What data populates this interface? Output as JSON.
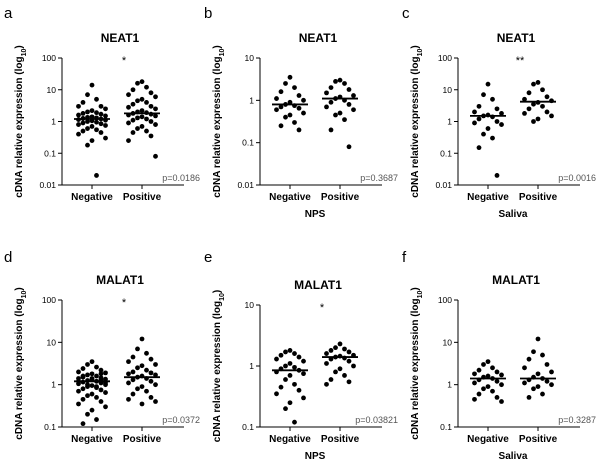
{
  "chart_data": [
    {
      "panel": "a",
      "type": "scatter",
      "title": "NEAT1",
      "ylabel": "cDNA relative expression (log10)",
      "yscale": "log",
      "ylim": [
        0.01,
        100
      ],
      "yticks": [
        0.01,
        0.1,
        1,
        10,
        100
      ],
      "yticklabels": [
        "0.01",
        "0.1",
        "1",
        "10",
        "100"
      ],
      "categories": [
        "Negative",
        "Positive"
      ],
      "xlabel": "",
      "medians": [
        1.2,
        1.8
      ],
      "pvalue": "p=0.0186",
      "significance": "*",
      "series": [
        {
          "name": "Negative",
          "values": [
            14,
            7,
            5,
            4,
            3,
            3,
            2.5,
            2.2,
            2,
            1.9,
            1.8,
            1.7,
            1.6,
            1.5,
            1.4,
            1.35,
            1.3,
            1.25,
            1.2,
            1.15,
            1.1,
            1.05,
            1,
            0.95,
            0.9,
            0.85,
            0.8,
            0.75,
            0.7,
            0.6,
            0.55,
            0.5,
            0.45,
            0.4,
            0.3,
            0.25,
            0.18,
            0.02
          ]
        },
        {
          "name": "Positive",
          "values": [
            18,
            16,
            12,
            10,
            8,
            7,
            6,
            5,
            4.5,
            4,
            3.5,
            3,
            2.8,
            2.5,
            2.2,
            2,
            1.9,
            1.8,
            1.7,
            1.6,
            1.5,
            1.4,
            1.3,
            1.2,
            1.1,
            1,
            0.9,
            0.8,
            0.7,
            0.6,
            0.5,
            0.45,
            0.35,
            0.25,
            0.08
          ]
        }
      ]
    },
    {
      "panel": "b",
      "type": "scatter",
      "title": "NEAT1",
      "ylabel": "cDNA relative expression (log10)",
      "yscale": "log",
      "ylim": [
        0.01,
        10
      ],
      "yticks": [
        0.01,
        0.1,
        1,
        10
      ],
      "yticklabels": [
        "0.01",
        "0.1",
        "1",
        "10"
      ],
      "categories": [
        "Negative",
        "Positive"
      ],
      "xlabel": "NPS",
      "medians": [
        0.8,
        1.1
      ],
      "pvalue": "p=0.3687",
      "significance": "",
      "series": [
        {
          "name": "Negative",
          "values": [
            3.5,
            2.5,
            2,
            1.6,
            1.3,
            1.1,
            1,
            0.9,
            0.8,
            0.75,
            0.7,
            0.65,
            0.6,
            0.5,
            0.45,
            0.4,
            0.3,
            0.25,
            0.2
          ]
        },
        {
          "name": "Positive",
          "values": [
            3,
            2.8,
            2.5,
            2,
            1.8,
            1.5,
            1.3,
            1.2,
            1.1,
            1,
            0.9,
            0.8,
            0.7,
            0.6,
            0.5,
            0.45,
            0.35,
            0.2,
            0.08
          ]
        }
      ]
    },
    {
      "panel": "c",
      "type": "scatter",
      "title": "NEAT1",
      "ylabel": "cDNA relative expression (log10)",
      "yscale": "log",
      "ylim": [
        0.01,
        100
      ],
      "yticks": [
        0.01,
        0.1,
        1,
        10,
        100
      ],
      "yticklabels": [
        "0.01",
        "0.1",
        "1",
        "10",
        "100"
      ],
      "categories": [
        "Negative",
        "Positive"
      ],
      "xlabel": "Saliva",
      "medians": [
        1.5,
        4.2
      ],
      "pvalue": "p=0.0016",
      "significance": "**",
      "series": [
        {
          "name": "Negative",
          "values": [
            15,
            7,
            5,
            3,
            2.5,
            2,
            1.8,
            1.6,
            1.5,
            1.4,
            1.2,
            1,
            0.9,
            0.8,
            0.6,
            0.4,
            0.3,
            0.15,
            0.02
          ]
        },
        {
          "name": "Positive",
          "values": [
            17,
            15,
            10,
            8,
            6,
            5,
            4.5,
            4,
            3.5,
            3,
            2.5,
            2,
            1.8,
            1.5,
            1.2,
            1
          ]
        }
      ]
    },
    {
      "panel": "d",
      "type": "scatter",
      "title": "MALAT1",
      "ylabel": "cDNA relative expression (log10)",
      "yscale": "log",
      "ylim": [
        0.1,
        100
      ],
      "yticks": [
        0.1,
        1,
        10,
        100
      ],
      "yticklabels": [
        "0.1",
        "1",
        "10",
        "100"
      ],
      "categories": [
        "Negative",
        "Positive"
      ],
      "xlabel": "",
      "medians": [
        1.2,
        1.5
      ],
      "pvalue": "p=0.0372",
      "significance": "*",
      "series": [
        {
          "name": "Negative",
          "values": [
            3.5,
            3,
            2.6,
            2.4,
            2.2,
            2,
            1.9,
            1.8,
            1.7,
            1.6,
            1.5,
            1.45,
            1.4,
            1.35,
            1.3,
            1.25,
            1.2,
            1.15,
            1.1,
            1.05,
            1,
            0.95,
            0.9,
            0.85,
            0.8,
            0.75,
            0.7,
            0.65,
            0.6,
            0.55,
            0.5,
            0.45,
            0.4,
            0.35,
            0.3,
            0.25,
            0.2,
            0.15,
            0.12,
            1.3,
            1.2,
            1.1,
            1.4,
            1,
            0.9,
            1.6,
            1.8
          ]
        },
        {
          "name": "Positive",
          "values": [
            12,
            7,
            5.5,
            4.5,
            4,
            3.5,
            3,
            2.8,
            2.5,
            2.2,
            2,
            1.9,
            1.8,
            1.7,
            1.6,
            1.5,
            1.4,
            1.3,
            1.2,
            1.1,
            1,
            0.9,
            0.8,
            0.7,
            0.6,
            0.5,
            0.45,
            0.4,
            0.35
          ]
        }
      ]
    },
    {
      "panel": "e",
      "type": "scatter",
      "title": "MALAT1",
      "ylabel": "cDNA relative expression (log10)",
      "yscale": "log",
      "ylim": [
        0.1,
        10
      ],
      "yticks": [
        0.1,
        1,
        10
      ],
      "yticklabels": [
        "0.1",
        "1",
        "10"
      ],
      "categories": [
        "Negative",
        "Positive"
      ],
      "xlabel": "NPS",
      "medians": [
        0.85,
        1.4
      ],
      "pvalue": "p=0.03821",
      "significance": "*",
      "series": [
        {
          "name": "Negative",
          "values": [
            1.8,
            1.7,
            1.6,
            1.5,
            1.4,
            1.3,
            1.2,
            1.1,
            1,
            0.95,
            0.9,
            0.85,
            0.8,
            0.75,
            0.7,
            0.6,
            0.5,
            0.45,
            0.4,
            0.35,
            0.3,
            0.25,
            0.2,
            0.12
          ]
        },
        {
          "name": "Positive",
          "values": [
            2.3,
            2,
            1.9,
            1.8,
            1.7,
            1.6,
            1.5,
            1.45,
            1.4,
            1.35,
            1.3,
            1.2,
            1.1,
            1,
            0.9,
            0.8,
            0.7,
            0.6,
            0.55,
            0.5
          ]
        }
      ]
    },
    {
      "panel": "f",
      "type": "scatter",
      "title": "MALAT1",
      "ylabel": "cDNA relative expression (log10)",
      "yscale": "log",
      "ylim": [
        0.1,
        100
      ],
      "yticks": [
        0.1,
        1,
        10,
        100
      ],
      "yticklabels": [
        "0.1",
        "1",
        "10",
        "100"
      ],
      "categories": [
        "Negative",
        "Positive"
      ],
      "xlabel": "Saliva",
      "medians": [
        1.4,
        1.4
      ],
      "pvalue": "p=0.3287",
      "significance": "",
      "series": [
        {
          "name": "Negative",
          "values": [
            3.5,
            3,
            2.5,
            2.2,
            2,
            1.8,
            1.7,
            1.6,
            1.5,
            1.4,
            1.3,
            1.2,
            1.1,
            1,
            0.9,
            0.8,
            0.7,
            0.6,
            0.5,
            0.45,
            0.4
          ]
        },
        {
          "name": "Positive",
          "values": [
            12,
            6,
            5,
            4,
            3,
            2.5,
            2,
            1.8,
            1.5,
            1.4,
            1.3,
            1.2,
            1.1,
            1,
            0.9,
            0.8,
            0.6,
            0.5
          ]
        }
      ]
    }
  ]
}
